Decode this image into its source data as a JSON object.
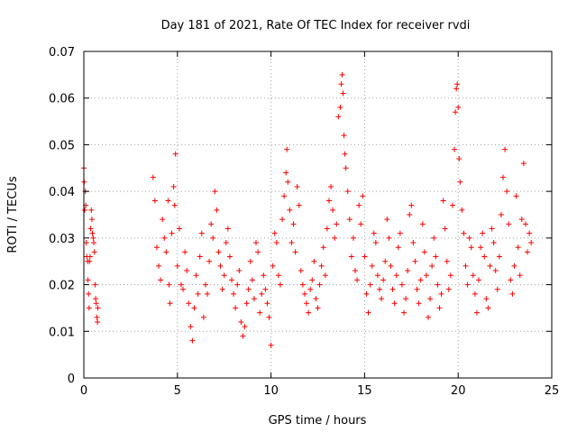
{
  "chart_data": {
    "type": "scatter",
    "title": "Day 181 of 2021, Rate Of TEC Index for receiver rvdi",
    "xlabel": "GPS time / hours",
    "ylabel": "ROTI / TECUs",
    "xlim": [
      0,
      25
    ],
    "ylim": [
      0,
      0.07
    ],
    "x_ticks": [
      0,
      5,
      10,
      15,
      20,
      25
    ],
    "x_tick_labels": [
      "0",
      "5",
      "10",
      "15",
      "20",
      "25"
    ],
    "y_ticks": [
      0,
      0.01,
      0.02,
      0.03,
      0.04,
      0.05,
      0.06,
      0.07
    ],
    "y_tick_labels": [
      "0",
      "0.01",
      "0.02",
      "0.03",
      "0.04",
      "0.05",
      "0.06",
      "0.07"
    ],
    "grid": true,
    "marker": "+",
    "series_color": "#ff0000",
    "series": [
      {
        "name": "",
        "points": [
          [
            0.0,
            0.045
          ],
          [
            0.02,
            0.042
          ],
          [
            0.05,
            0.036
          ],
          [
            0.08,
            0.04
          ],
          [
            0.1,
            0.037
          ],
          [
            0.13,
            0.029
          ],
          [
            0.16,
            0.026
          ],
          [
            0.2,
            0.025
          ],
          [
            0.22,
            0.021
          ],
          [
            0.25,
            0.018
          ],
          [
            0.28,
            0.015
          ],
          [
            0.3,
            0.025
          ],
          [
            0.33,
            0.026
          ],
          [
            0.36,
            0.032
          ],
          [
            0.4,
            0.036
          ],
          [
            0.43,
            0.034
          ],
          [
            0.46,
            0.031
          ],
          [
            0.5,
            0.03
          ],
          [
            0.53,
            0.029
          ],
          [
            0.56,
            0.027
          ],
          [
            0.6,
            0.02
          ],
          [
            0.63,
            0.017
          ],
          [
            0.66,
            0.016
          ],
          [
            0.7,
            0.013
          ],
          [
            0.73,
            0.012
          ],
          [
            0.75,
            0.015
          ],
          [
            3.7,
            0.043
          ],
          [
            3.8,
            0.038
          ],
          [
            3.9,
            0.028
          ],
          [
            4.0,
            0.024
          ],
          [
            4.1,
            0.021
          ],
          [
            4.2,
            0.034
          ],
          [
            4.3,
            0.03
          ],
          [
            4.4,
            0.027
          ],
          [
            4.5,
            0.038
          ],
          [
            4.55,
            0.02
          ],
          [
            4.6,
            0.016
          ],
          [
            4.7,
            0.031
          ],
          [
            4.8,
            0.041
          ],
          [
            4.85,
            0.037
          ],
          [
            4.9,
            0.048
          ],
          [
            5.0,
            0.024
          ],
          [
            5.1,
            0.032
          ],
          [
            5.2,
            0.02
          ],
          [
            5.3,
            0.019
          ],
          [
            5.4,
            0.027
          ],
          [
            5.5,
            0.023
          ],
          [
            5.6,
            0.016
          ],
          [
            5.7,
            0.011
          ],
          [
            5.8,
            0.008
          ],
          [
            5.9,
            0.015
          ],
          [
            6.0,
            0.022
          ],
          [
            6.1,
            0.018
          ],
          [
            6.2,
            0.026
          ],
          [
            6.3,
            0.031
          ],
          [
            6.4,
            0.013
          ],
          [
            6.5,
            0.02
          ],
          [
            6.6,
            0.018
          ],
          [
            6.7,
            0.025
          ],
          [
            6.8,
            0.033
          ],
          [
            6.9,
            0.03
          ],
          [
            7.0,
            0.04
          ],
          [
            7.1,
            0.036
          ],
          [
            7.2,
            0.027
          ],
          [
            7.3,
            0.024
          ],
          [
            7.4,
            0.019
          ],
          [
            7.5,
            0.022
          ],
          [
            7.6,
            0.029
          ],
          [
            7.7,
            0.032
          ],
          [
            7.8,
            0.026
          ],
          [
            7.9,
            0.021
          ],
          [
            8.0,
            0.018
          ],
          [
            8.1,
            0.015
          ],
          [
            8.2,
            0.02
          ],
          [
            8.3,
            0.023
          ],
          [
            8.4,
            0.012
          ],
          [
            8.5,
            0.009
          ],
          [
            8.6,
            0.011
          ],
          [
            8.7,
            0.016
          ],
          [
            8.8,
            0.019
          ],
          [
            8.9,
            0.025
          ],
          [
            9.0,
            0.021
          ],
          [
            9.1,
            0.017
          ],
          [
            9.2,
            0.029
          ],
          [
            9.3,
            0.027
          ],
          [
            9.4,
            0.014
          ],
          [
            9.5,
            0.018
          ],
          [
            9.6,
            0.022
          ],
          [
            9.7,
            0.019
          ],
          [
            9.8,
            0.016
          ],
          [
            9.9,
            0.013
          ],
          [
            10.0,
            0.007
          ],
          [
            10.1,
            0.024
          ],
          [
            10.2,
            0.031
          ],
          [
            10.3,
            0.029
          ],
          [
            10.4,
            0.022
          ],
          [
            10.5,
            0.02
          ],
          [
            10.6,
            0.034
          ],
          [
            10.7,
            0.039
          ],
          [
            10.8,
            0.044
          ],
          [
            10.85,
            0.049
          ],
          [
            10.9,
            0.042
          ],
          [
            11.0,
            0.036
          ],
          [
            11.1,
            0.029
          ],
          [
            11.2,
            0.033
          ],
          [
            11.3,
            0.027
          ],
          [
            11.4,
            0.041
          ],
          [
            11.5,
            0.037
          ],
          [
            11.6,
            0.023
          ],
          [
            11.7,
            0.02
          ],
          [
            11.8,
            0.018
          ],
          [
            11.9,
            0.016
          ],
          [
            12.0,
            0.014
          ],
          [
            12.1,
            0.019
          ],
          [
            12.2,
            0.021
          ],
          [
            12.3,
            0.025
          ],
          [
            12.4,
            0.017
          ],
          [
            12.5,
            0.015
          ],
          [
            12.6,
            0.02
          ],
          [
            12.7,
            0.024
          ],
          [
            12.8,
            0.028
          ],
          [
            12.9,
            0.022
          ],
          [
            13.0,
            0.032
          ],
          [
            13.1,
            0.038
          ],
          [
            13.2,
            0.041
          ],
          [
            13.3,
            0.036
          ],
          [
            13.4,
            0.03
          ],
          [
            13.5,
            0.033
          ],
          [
            13.6,
            0.056
          ],
          [
            13.7,
            0.058
          ],
          [
            13.75,
            0.063
          ],
          [
            13.8,
            0.065
          ],
          [
            13.85,
            0.061
          ],
          [
            13.9,
            0.052
          ],
          [
            13.95,
            0.048
          ],
          [
            14.0,
            0.045
          ],
          [
            14.1,
            0.04
          ],
          [
            14.2,
            0.034
          ],
          [
            14.3,
            0.026
          ],
          [
            14.4,
            0.03
          ],
          [
            14.5,
            0.023
          ],
          [
            14.6,
            0.021
          ],
          [
            14.7,
            0.037
          ],
          [
            14.8,
            0.033
          ],
          [
            14.9,
            0.039
          ],
          [
            15.0,
            0.026
          ],
          [
            15.1,
            0.018
          ],
          [
            15.2,
            0.014
          ],
          [
            15.3,
            0.02
          ],
          [
            15.4,
            0.024
          ],
          [
            15.5,
            0.031
          ],
          [
            15.6,
            0.029
          ],
          [
            15.7,
            0.022
          ],
          [
            15.8,
            0.019
          ],
          [
            15.9,
            0.017
          ],
          [
            16.0,
            0.021
          ],
          [
            16.1,
            0.025
          ],
          [
            16.2,
            0.034
          ],
          [
            16.3,
            0.03
          ],
          [
            16.4,
            0.024
          ],
          [
            16.5,
            0.019
          ],
          [
            16.6,
            0.016
          ],
          [
            16.7,
            0.022
          ],
          [
            16.8,
            0.028
          ],
          [
            16.9,
            0.031
          ],
          [
            17.0,
            0.02
          ],
          [
            17.1,
            0.014
          ],
          [
            17.2,
            0.017
          ],
          [
            17.3,
            0.023
          ],
          [
            17.4,
            0.035
          ],
          [
            17.5,
            0.037
          ],
          [
            17.6,
            0.029
          ],
          [
            17.7,
            0.025
          ],
          [
            17.8,
            0.019
          ],
          [
            17.9,
            0.016
          ],
          [
            18.0,
            0.021
          ],
          [
            18.1,
            0.033
          ],
          [
            18.2,
            0.027
          ],
          [
            18.3,
            0.022
          ],
          [
            18.4,
            0.013
          ],
          [
            18.5,
            0.017
          ],
          [
            18.6,
            0.024
          ],
          [
            18.7,
            0.03
          ],
          [
            18.8,
            0.026
          ],
          [
            18.9,
            0.02
          ],
          [
            19.0,
            0.015
          ],
          [
            19.1,
            0.018
          ],
          [
            19.2,
            0.038
          ],
          [
            19.3,
            0.032
          ],
          [
            19.4,
            0.025
          ],
          [
            19.5,
            0.019
          ],
          [
            19.6,
            0.022
          ],
          [
            19.7,
            0.037
          ],
          [
            19.8,
            0.049
          ],
          [
            19.85,
            0.057
          ],
          [
            19.9,
            0.062
          ],
          [
            19.95,
            0.063
          ],
          [
            20.0,
            0.058
          ],
          [
            20.05,
            0.047
          ],
          [
            20.1,
            0.042
          ],
          [
            20.2,
            0.036
          ],
          [
            20.3,
            0.031
          ],
          [
            20.4,
            0.024
          ],
          [
            20.5,
            0.02
          ],
          [
            20.6,
            0.03
          ],
          [
            20.7,
            0.028
          ],
          [
            20.8,
            0.022
          ],
          [
            20.9,
            0.018
          ],
          [
            21.0,
            0.014
          ],
          [
            21.1,
            0.021
          ],
          [
            21.2,
            0.028
          ],
          [
            21.3,
            0.031
          ],
          [
            21.4,
            0.026
          ],
          [
            21.5,
            0.017
          ],
          [
            21.6,
            0.015
          ],
          [
            21.7,
            0.024
          ],
          [
            21.8,
            0.032
          ],
          [
            21.9,
            0.029
          ],
          [
            22.0,
            0.023
          ],
          [
            22.1,
            0.019
          ],
          [
            22.2,
            0.026
          ],
          [
            22.3,
            0.035
          ],
          [
            22.4,
            0.043
          ],
          [
            22.5,
            0.049
          ],
          [
            22.6,
            0.04
          ],
          [
            22.7,
            0.033
          ],
          [
            22.8,
            0.021
          ],
          [
            22.9,
            0.018
          ],
          [
            23.0,
            0.024
          ],
          [
            23.1,
            0.039
          ],
          [
            23.2,
            0.028
          ],
          [
            23.3,
            0.022
          ],
          [
            23.4,
            0.034
          ],
          [
            23.5,
            0.046
          ],
          [
            23.6,
            0.033
          ],
          [
            23.7,
            0.027
          ],
          [
            23.8,
            0.031
          ],
          [
            23.9,
            0.029
          ]
        ]
      }
    ]
  }
}
